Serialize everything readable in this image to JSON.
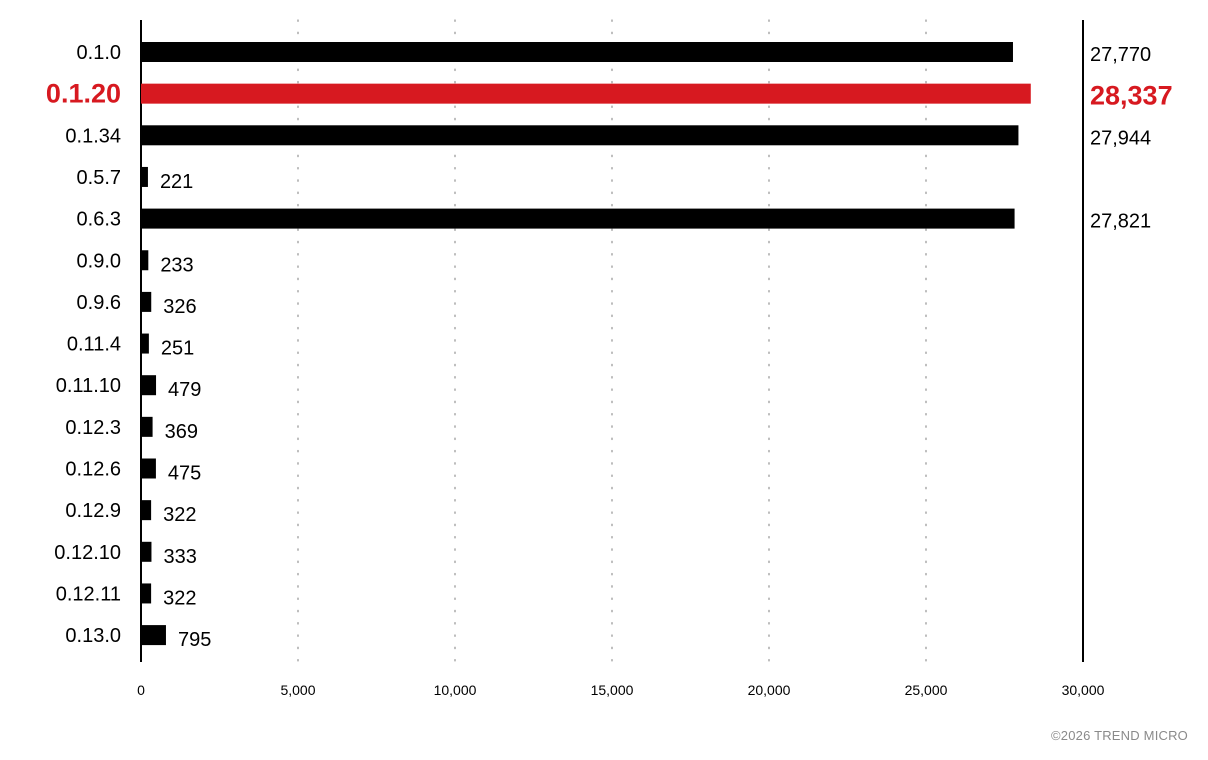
{
  "footer": {
    "copyright": "©2026 TREND MICRO"
  },
  "colors": {
    "bar": "#000000",
    "highlight": "#d71920",
    "grid": "#9a9a9a",
    "text": "#000000"
  },
  "chart_data": {
    "type": "bar",
    "orientation": "horizontal",
    "categories": [
      "0.1.0",
      "0.1.20",
      "0.1.34",
      "0.5.7",
      "0.6.3",
      "0.9.0",
      "0.9.6",
      "0.11.4",
      "0.11.10",
      "0.12.3",
      "0.12.6",
      "0.12.9",
      "0.12.10",
      "0.12.11",
      "0.13.0"
    ],
    "values": [
      27770,
      28337,
      27944,
      221,
      27821,
      233,
      326,
      251,
      479,
      369,
      475,
      322,
      333,
      322,
      795
    ],
    "value_labels": [
      "27,770",
      "28,337",
      "27,944",
      "221",
      "27,821",
      "233",
      "326",
      "251",
      "479",
      "369",
      "475",
      "322",
      "333",
      "322",
      "795"
    ],
    "highlight_category": "0.1.20",
    "x_ticks": [
      0,
      5000,
      10000,
      15000,
      20000,
      25000,
      30000
    ],
    "x_tick_labels": [
      "0",
      "5,000",
      "10,000",
      "15,000",
      "20,000",
      "25,000",
      "30,000"
    ],
    "xlim": [
      0,
      30000
    ],
    "grid": "vertical dotted",
    "legend": "none"
  }
}
